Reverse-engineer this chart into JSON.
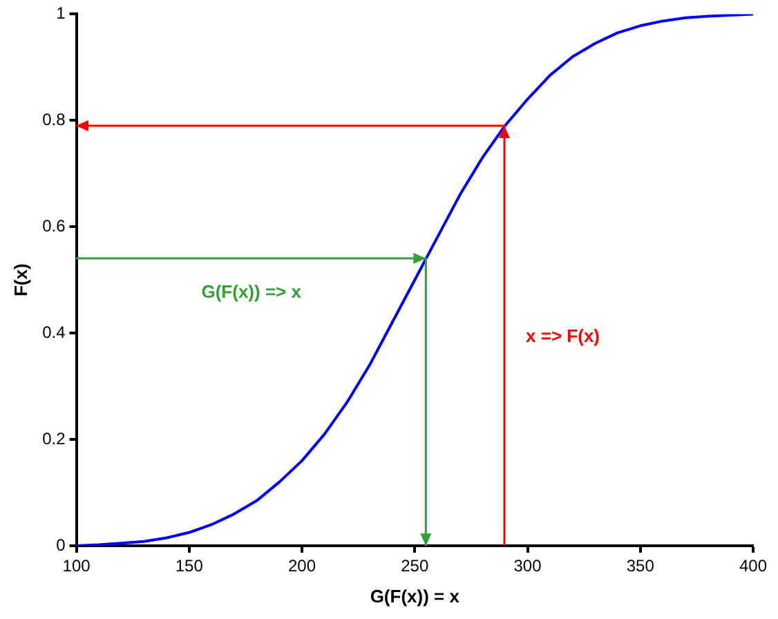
{
  "chart_data": {
    "type": "line",
    "xlabel": "G(F(x)) = x",
    "ylabel": "F(x)",
    "xlim": [
      100,
      400
    ],
    "xticks": [
      100,
      150,
      200,
      250,
      300,
      350,
      400
    ],
    "ylim": [
      0,
      1
    ],
    "yticks": [
      0,
      0.2,
      0.4,
      0.6,
      0.8,
      1
    ],
    "grid": false,
    "legend": false,
    "marker": "none",
    "line_style": "solid",
    "series": [
      {
        "color": "#0000ff",
        "x": [
          100,
          110,
          120,
          130,
          140,
          150,
          160,
          170,
          180,
          190,
          200,
          210,
          220,
          230,
          240,
          250,
          255,
          260,
          270,
          280,
          290,
          300,
          310,
          320,
          330,
          340,
          350,
          360,
          370,
          380,
          390,
          400
        ],
        "values": [
          0,
          0.002,
          0.005,
          0.008,
          0.015,
          0.025,
          0.04,
          0.06,
          0.085,
          0.12,
          0.16,
          0.21,
          0.27,
          0.34,
          0.42,
          0.5,
          0.54,
          0.58,
          0.66,
          0.73,
          0.79,
          0.84,
          0.885,
          0.92,
          0.945,
          0.965,
          0.978,
          0.987,
          0.993,
          0.996,
          0.998,
          1
        ]
      }
    ],
    "annotations": [
      "x => F(x)",
      "G(F(x)) => x"
    ]
  }
}
